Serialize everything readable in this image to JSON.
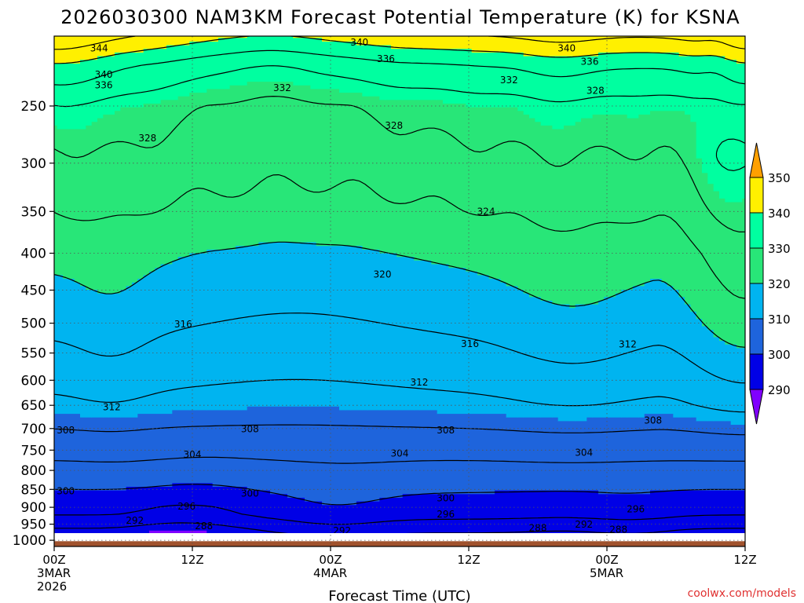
{
  "chart_data": {
    "type": "heatmap",
    "title": "2026030300 NAM3KM Forecast Potential Temperature (K) for KSNA",
    "xlabel": "Forecast Time (UTC)",
    "ylabel": "",
    "x_ticks": [
      {
        "hour": 0,
        "label": "00Z",
        "sub": [
          "3MAR",
          "2026"
        ]
      },
      {
        "hour": 12,
        "label": "12Z",
        "sub": []
      },
      {
        "hour": 24,
        "label": "00Z",
        "sub": [
          "4MAR"
        ]
      },
      {
        "hour": 36,
        "label": "12Z",
        "sub": []
      },
      {
        "hour": 48,
        "label": "00Z",
        "sub": [
          "5MAR"
        ]
      },
      {
        "hour": 60,
        "label": "12Z",
        "sub": []
      }
    ],
    "xlim": [
      0,
      60
    ],
    "y_ticks": [
      250,
      300,
      350,
      400,
      450,
      500,
      550,
      600,
      650,
      700,
      750,
      800,
      850,
      900,
      950,
      1000
    ],
    "ylim_hpa": [
      200,
      1020
    ],
    "surface_pressure_hpa": 1003,
    "colorbar": {
      "ticks": [
        290,
        300,
        310,
        320,
        330,
        340,
        350
      ],
      "bands": [
        {
          "min": 280,
          "max": 290,
          "color": "#8000ff"
        },
        {
          "min": 290,
          "max": 300,
          "color": "#0000e6"
        },
        {
          "min": 300,
          "max": 310,
          "color": "#1e64dc"
        },
        {
          "min": 310,
          "max": 320,
          "color": "#00b4f0"
        },
        {
          "min": 320,
          "max": 330,
          "color": "#28e678"
        },
        {
          "min": 330,
          "max": 340,
          "color": "#00ffa0"
        },
        {
          "min": 340,
          "max": 350,
          "color": "#fff000"
        },
        {
          "min": 350,
          "max": 360,
          "color": "#ffa000"
        }
      ],
      "arrow_low_color": "#8000ff",
      "arrow_high_color": "#ffa000"
    },
    "ground_color": "#a0522d",
    "isotherms_K": [
      288,
      292,
      296,
      300,
      304,
      308,
      312,
      316,
      320,
      324,
      328,
      332,
      336,
      340,
      344
    ],
    "theta_profile": {
      "pressure_hpa": [
        1000,
        975,
        950,
        925,
        900,
        850,
        800,
        750,
        700,
        650,
        600,
        550,
        500,
        450,
        400,
        350,
        300,
        250,
        220,
        200
      ],
      "theta_K_at_00Z_3MAR": [
        288,
        291,
        293,
        296,
        297,
        300,
        303,
        305,
        308,
        311,
        313,
        315,
        317,
        319,
        321,
        324,
        327,
        330,
        336,
        344
      ]
    },
    "contour_labels": [
      {
        "text": "344",
        "hour": 3.9,
        "hpa": 208
      },
      {
        "text": "340",
        "hour": 4.3,
        "hpa": 226
      },
      {
        "text": "336",
        "hour": 4.3,
        "hpa": 234
      },
      {
        "text": "340",
        "hour": 26.5,
        "hpa": 204
      },
      {
        "text": "336",
        "hour": 28.8,
        "hpa": 215
      },
      {
        "text": "332",
        "hour": 19.8,
        "hpa": 236
      },
      {
        "text": "340",
        "hour": 44.5,
        "hpa": 208
      },
      {
        "text": "336",
        "hour": 46.5,
        "hpa": 217
      },
      {
        "text": "332",
        "hour": 39.5,
        "hpa": 230
      },
      {
        "text": "328",
        "hour": 47.0,
        "hpa": 238
      },
      {
        "text": "328",
        "hour": 29.5,
        "hpa": 266
      },
      {
        "text": "328",
        "hour": 8.1,
        "hpa": 277
      },
      {
        "text": "324",
        "hour": 37.5,
        "hpa": 350
      },
      {
        "text": "320",
        "hour": 28.5,
        "hpa": 428
      },
      {
        "text": "316",
        "hour": 11.2,
        "hpa": 502
      },
      {
        "text": "316",
        "hour": 36.1,
        "hpa": 534
      },
      {
        "text": "312",
        "hour": 31.7,
        "hpa": 604
      },
      {
        "text": "312",
        "hour": 5.0,
        "hpa": 654
      },
      {
        "text": "312",
        "hour": 49.8,
        "hpa": 535
      },
      {
        "text": "308",
        "hour": 1.0,
        "hpa": 704
      },
      {
        "text": "308",
        "hour": 17.0,
        "hpa": 701
      },
      {
        "text": "308",
        "hour": 34.0,
        "hpa": 704
      },
      {
        "text": "308",
        "hour": 52.0,
        "hpa": 682
      },
      {
        "text": "304",
        "hour": 12.0,
        "hpa": 761
      },
      {
        "text": "304",
        "hour": 30.0,
        "hpa": 758
      },
      {
        "text": "304",
        "hour": 46.0,
        "hpa": 756
      },
      {
        "text": "300",
        "hour": 1.0,
        "hpa": 855
      },
      {
        "text": "300",
        "hour": 17.0,
        "hpa": 861
      },
      {
        "text": "300",
        "hour": 34.0,
        "hpa": 874
      },
      {
        "text": "296",
        "hour": 11.5,
        "hpa": 898
      },
      {
        "text": "296",
        "hour": 34.0,
        "hpa": 920
      },
      {
        "text": "296",
        "hour": 50.5,
        "hpa": 905
      },
      {
        "text": "292",
        "hour": 7.0,
        "hpa": 939
      },
      {
        "text": "292",
        "hour": 25.0,
        "hpa": 970
      },
      {
        "text": "292",
        "hour": 46.0,
        "hpa": 951
      },
      {
        "text": "288",
        "hour": 13.0,
        "hpa": 956
      },
      {
        "text": "288",
        "hour": 42.0,
        "hpa": 962
      },
      {
        "text": "288",
        "hour": 49.0,
        "hpa": 966
      }
    ]
  },
  "credit": "coolwx.com/models"
}
